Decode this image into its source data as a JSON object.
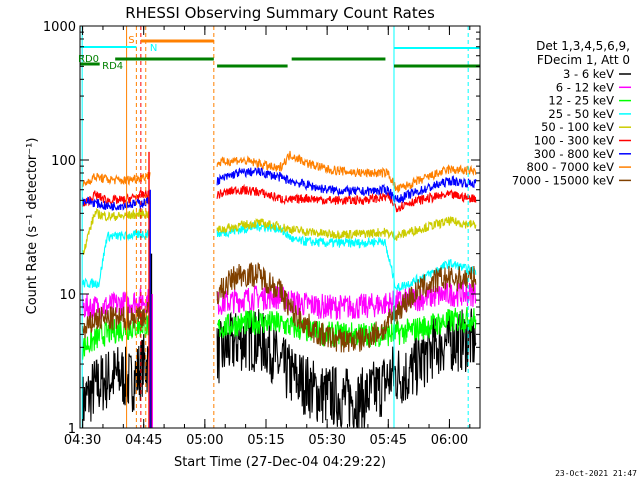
{
  "chart_data": {
    "type": "line",
    "title": "RHESSI Observing Summary Count Rates",
    "xlabel": "Start Time (27-Dec-04 04:29:22)",
    "ylabel": "Count Rate (s⁻¹ detector⁻¹)",
    "ylog": true,
    "ylim": [
      1,
      1000
    ],
    "xlim": [
      "04:30",
      "06:07"
    ],
    "x_ticks": [
      "04:30",
      "04:45",
      "05:00",
      "05:15",
      "05:30",
      "05:45",
      "06:00"
    ],
    "y_ticks": [
      "1",
      "10",
      "100",
      "1000"
    ],
    "legend_title": [
      "Det 1,3,4,5,6,9,",
      "FDecim 1, Att 0"
    ],
    "legend_placement": "right",
    "timestamp": "23-Oct-2021 21:47",
    "series": [
      {
        "name": "3 - 6 keV",
        "color": "#000000",
        "x": [
          "04:30",
          "04:33",
          "04:36",
          "04:39",
          "04:42",
          "04:45",
          "05:03",
          "05:08",
          "05:13",
          "05:16",
          "05:18",
          "05:21",
          "05:24",
          "05:28",
          "05:33",
          "05:38",
          "05:43",
          "05:46",
          "05:50",
          "05:56",
          "06:00",
          "06:05"
        ],
        "values": [
          1.5,
          2.0,
          2.3,
          2.5,
          2.2,
          3,
          3.5,
          4.5,
          4.5,
          4,
          3,
          2.5,
          2.2,
          1.8,
          1.7,
          1.6,
          2.0,
          2.5,
          2.5,
          4.0,
          4.5,
          4.5
        ]
      },
      {
        "name": "6 - 12 keV",
        "color": "#ff00ff",
        "x": [
          "04:30",
          "04:35",
          "04:40",
          "04:45",
          "05:03",
          "05:08",
          "05:13",
          "05:18",
          "05:23",
          "05:30",
          "05:38",
          "05:45",
          "05:50",
          "05:55",
          "06:00",
          "06:05"
        ],
        "values": [
          8,
          8,
          8.5,
          9,
          8.5,
          9,
          9.5,
          9.5,
          8.5,
          8,
          8,
          8.5,
          9,
          9.5,
          10,
          10
        ]
      },
      {
        "name": "12 - 25 keV",
        "color": "#00ff00",
        "x": [
          "04:30",
          "04:35",
          "04:40",
          "04:45",
          "05:03",
          "05:08",
          "05:13",
          "05:18",
          "05:23",
          "05:30",
          "05:38",
          "05:45",
          "05:50",
          "05:55",
          "06:00",
          "06:05"
        ],
        "values": [
          4,
          5,
          5.5,
          5.8,
          5.5,
          6,
          6.2,
          6,
          5.5,
          5,
          5,
          5,
          5.3,
          5.8,
          6.3,
          6.5
        ]
      },
      {
        "name": "25 - 50 keV",
        "color": "#00ffff",
        "x": [
          "04:30",
          "04:34",
          "04:36",
          "04:40",
          "04:45",
          "05:03",
          "05:08",
          "05:13",
          "05:18",
          "05:22",
          "05:30",
          "05:38",
          "05:44",
          "05:47",
          "05:50",
          "05:55",
          "06:00",
          "06:05"
        ],
        "values": [
          12,
          12,
          27,
          27,
          28,
          28,
          30,
          32,
          31,
          25,
          24,
          24,
          25,
          11,
          12,
          14,
          17,
          15
        ]
      },
      {
        "name": "50 - 100 keV",
        "color": "#cccc00",
        "x": [
          "04:30",
          "04:33",
          "04:36",
          "04:40",
          "04:45",
          "05:03",
          "05:08",
          "05:13",
          "05:18",
          "05:22",
          "05:30",
          "05:38",
          "05:44",
          "05:47",
          "05:50",
          "05:55",
          "06:00",
          "06:05"
        ],
        "values": [
          20,
          40,
          38,
          38,
          40,
          30,
          32,
          34,
          32,
          30,
          28,
          28,
          29,
          27,
          29,
          32,
          35,
          33
        ]
      },
      {
        "name": "100 - 300 keV",
        "color": "#ff0000",
        "x": [
          "04:30",
          "04:33",
          "04:36",
          "04:40",
          "04:45",
          "05:03",
          "05:08",
          "05:13",
          "05:18",
          "05:21",
          "05:25",
          "05:30",
          "05:38",
          "05:45",
          "05:47",
          "05:50",
          "05:55",
          "06:00",
          "06:05"
        ],
        "values": [
          45,
          55,
          50,
          50,
          55,
          55,
          60,
          58,
          52,
          50,
          52,
          50,
          50,
          53,
          44,
          48,
          52,
          55,
          52
        ]
      },
      {
        "name": "300 - 800 keV",
        "color": "#0000ff",
        "x": [
          "04:30",
          "04:33",
          "04:36",
          "04:40",
          "04:45",
          "05:03",
          "05:08",
          "05:13",
          "05:18",
          "05:21",
          "05:25",
          "05:30",
          "05:38",
          "05:45",
          "05:47",
          "05:50",
          "05:55",
          "06:00",
          "06:05"
        ],
        "values": [
          50,
          48,
          45,
          46,
          48,
          70,
          80,
          82,
          75,
          70,
          65,
          60,
          58,
          60,
          50,
          55,
          62,
          70,
          67
        ]
      },
      {
        "name": "800 - 7000 keV",
        "color": "#ff8000",
        "x": [
          "04:30",
          "04:33",
          "04:36",
          "04:40",
          "04:45",
          "05:03",
          "05:08",
          "05:13",
          "05:18",
          "05:21",
          "05:25",
          "05:30",
          "05:38",
          "05:45",
          "05:47",
          "05:50",
          "05:55",
          "06:00",
          "06:05"
        ],
        "values": [
          65,
          75,
          72,
          70,
          75,
          95,
          100,
          95,
          85,
          110,
          95,
          85,
          80,
          80,
          60,
          65,
          75,
          85,
          83
        ]
      },
      {
        "name": "7000 - 15000 keV",
        "color": "#804000",
        "x": [
          "04:30",
          "04:33",
          "04:36",
          "04:40",
          "04:45",
          "05:03",
          "05:08",
          "05:13",
          "05:18",
          "05:22",
          "05:28",
          "05:33",
          "05:38",
          "05:44",
          "05:48",
          "05:53",
          "05:58",
          "06:05"
        ],
        "values": [
          5,
          6.5,
          6.5,
          6.5,
          7,
          10,
          14,
          14,
          11,
          7,
          5,
          4.5,
          4.5,
          5.5,
          8,
          11,
          13,
          13
        ]
      }
    ],
    "annotations": [
      {
        "text": "S",
        "color": "#ff8000"
      },
      {
        "text": "N",
        "color": "#00ffff"
      },
      {
        "text": "RD0",
        "color": "#008000"
      },
      {
        "text": "RD4",
        "color": "#008000"
      }
    ]
  }
}
